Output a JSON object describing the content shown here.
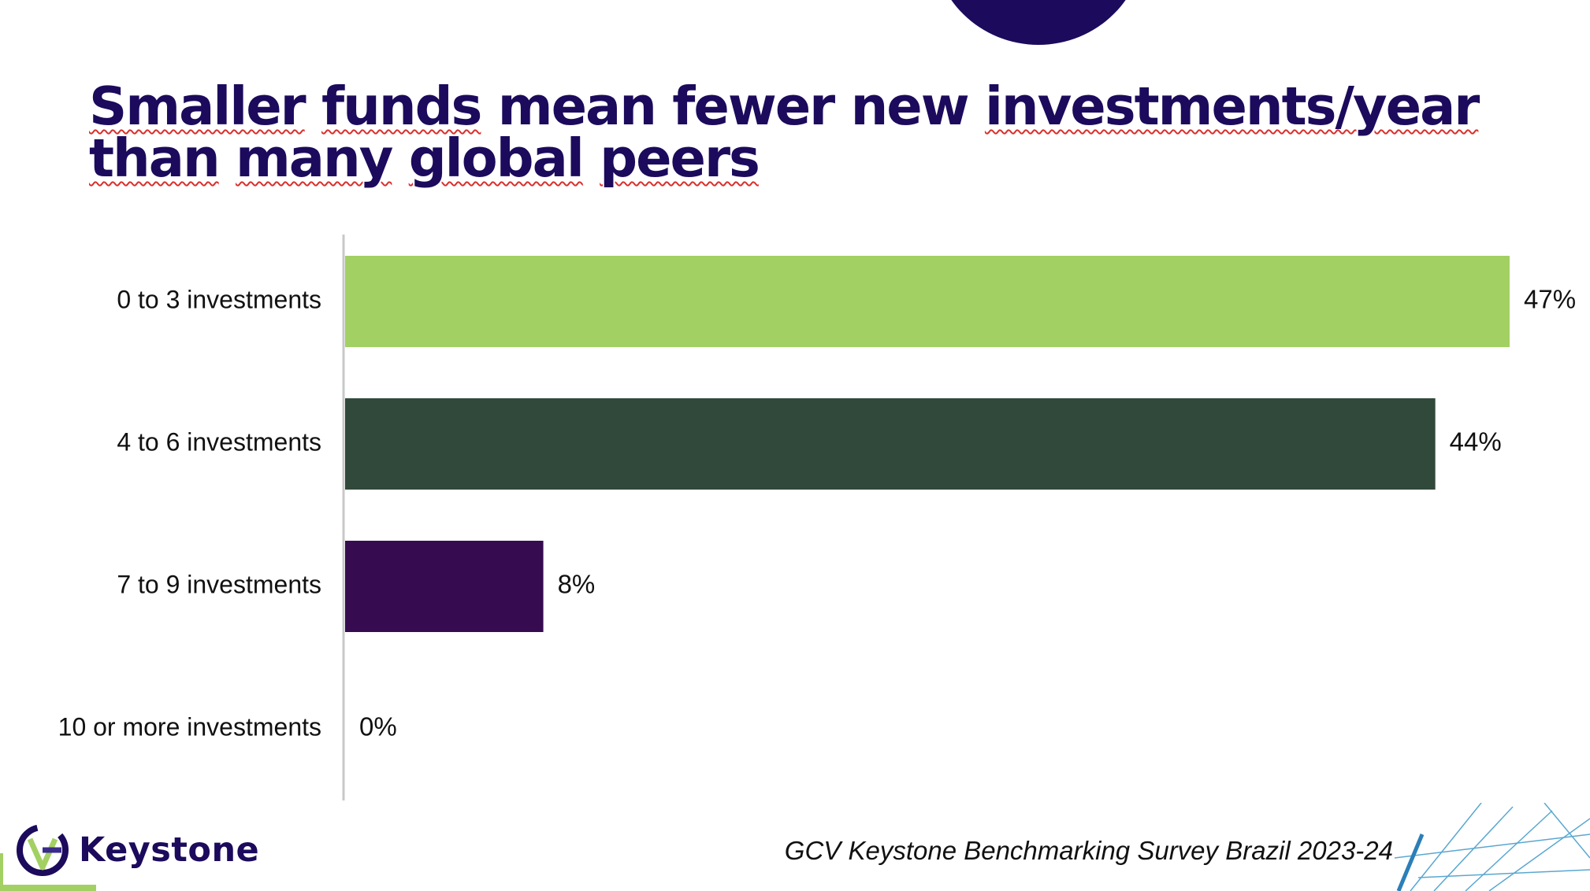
{
  "slide": {
    "title_line1_words": [
      "Smaller",
      "funds",
      "mean",
      "fewer",
      "new",
      "investments/year"
    ],
    "title_line2_words": [
      "than",
      "many",
      "global",
      "peers"
    ],
    "source": "GCV Keystone Benchmarking Survey Brazil 2023-24",
    "logo_text": "Keystone"
  },
  "colors": {
    "title": "#1c0a5c",
    "bar_light_green": "#a3d063",
    "bar_dark_green": "#31493a",
    "bar_purple": "#360b4f",
    "axis": "#c8c8c8"
  },
  "chart_data": {
    "type": "bar",
    "orientation": "horizontal",
    "categories": [
      "0 to 3 investments",
      "4 to 6 investments",
      "7 to 9 investments",
      "10 or more investments"
    ],
    "values": [
      47,
      44,
      8,
      0
    ],
    "value_labels": [
      "47%",
      "44%",
      "8%",
      "0%"
    ],
    "bar_colors": [
      "#a3d063",
      "#31493a",
      "#360b4f",
      "#a3d063"
    ],
    "xlim": [
      0,
      47
    ],
    "grid": false,
    "legend": "none"
  }
}
